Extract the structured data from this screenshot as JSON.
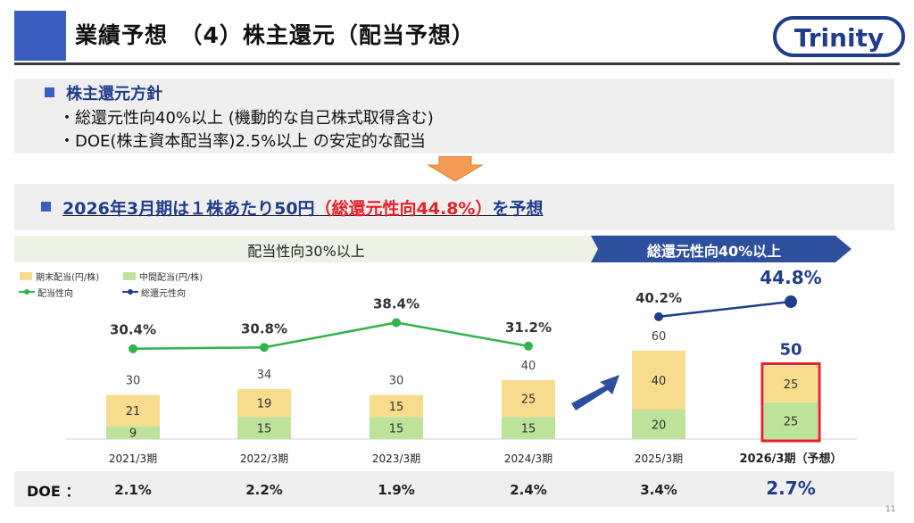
{
  "header": {
    "title": "業績予想　（4）株主還元（配当予想）",
    "logo_text": "Trinity",
    "brand_color": "#1f3d8a",
    "accent_color": "#3a5fc0"
  },
  "policy": {
    "heading": "株主還元方針",
    "line1": "・総還元性向40%以上 (機動的な自己株式取得含む)",
    "line2": "・DOE(株主資本配当率)2.5%以上 の安定的な配当"
  },
  "forecast": {
    "part1": "2026年3月期は１株あたり50円",
    "part2": "（総還元性向44.8%）",
    "part3": "を予想"
  },
  "bands": {
    "left": "配当性向30%以上",
    "right": "総還元性向40%以上"
  },
  "legend": {
    "year_end": "期末配当(円/株)",
    "interim": "中間配当(円/株)",
    "payout": "配当性向",
    "total_return": "総還元性向"
  },
  "chart_data": {
    "type": "bar",
    "stacked": true,
    "categories": [
      "2021/3期",
      "2022/3期",
      "2023/3期",
      "2024/3期",
      "2025/3期",
      "2026/3期（予想）"
    ],
    "series": [
      {
        "name": "中間配当(円/株)",
        "values": [
          9,
          15,
          15,
          15,
          20,
          25
        ],
        "color": "#bde39a"
      },
      {
        "name": "期末配当(円/株)",
        "values": [
          21,
          19,
          15,
          25,
          40,
          25
        ],
        "color": "#f7dc8e"
      }
    ],
    "totals": [
      30,
      34,
      30,
      40,
      60,
      50
    ],
    "lines": [
      {
        "name": "配当性向",
        "values": [
          30.4,
          30.8,
          38.4,
          31.2,
          null,
          null
        ],
        "labels": [
          "30.4%",
          "30.8%",
          "38.4%",
          "31.2%",
          "",
          ""
        ],
        "color": "#2fb34a"
      },
      {
        "name": "総還元性向",
        "values": [
          null,
          null,
          null,
          null,
          40.2,
          44.8
        ],
        "labels": [
          "",
          "",
          "",
          "",
          "40.2%",
          "44.8%"
        ],
        "color": "#1f3d8a"
      }
    ],
    "highlight_index": 5,
    "highlight_color": "#e8202a",
    "doe": [
      "2.1%",
      "2.2%",
      "1.9%",
      "2.4%",
      "3.4%",
      "2.7%"
    ]
  },
  "doe_label": "DOE ：",
  "page_number": "11"
}
